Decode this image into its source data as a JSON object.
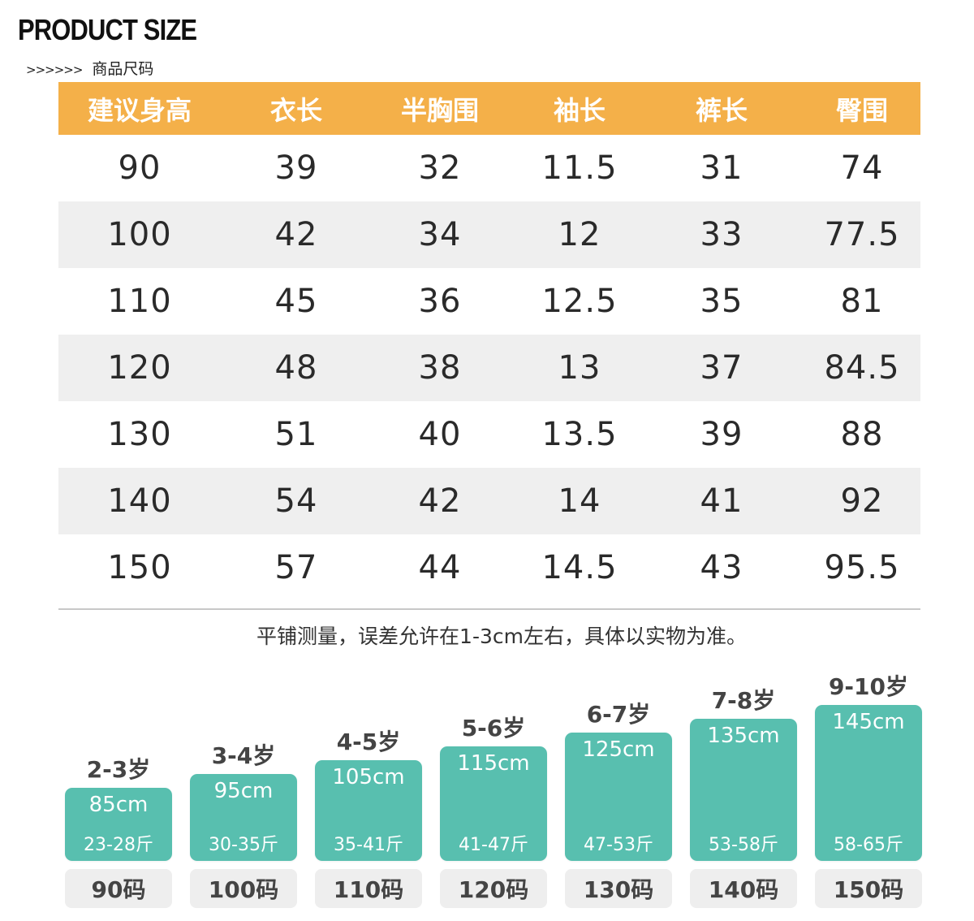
{
  "title": "PRODUCT SIZE",
  "subtitle": {
    "arrows": ">>>>>>",
    "text": "商品尺码"
  },
  "table": {
    "headers": [
      "建议身高",
      "衣长",
      "半胸围",
      "袖长",
      "裤长",
      "臀围"
    ],
    "rows": [
      [
        "90",
        "39",
        "32",
        "11.5",
        "31",
        "74"
      ],
      [
        "100",
        "42",
        "34",
        "12",
        "33",
        "77.5"
      ],
      [
        "110",
        "45",
        "36",
        "12.5",
        "35",
        "81"
      ],
      [
        "120",
        "48",
        "38",
        "13",
        "37",
        "84.5"
      ],
      [
        "130",
        "51",
        "40",
        "13.5",
        "39",
        "88"
      ],
      [
        "140",
        "54",
        "42",
        "14",
        "41",
        "92"
      ],
      [
        "150",
        "57",
        "44",
        "14.5",
        "43",
        "95.5"
      ]
    ]
  },
  "note": "平铺测量，误差允许在1-3cm左右，具体以实物为准。",
  "size_guide": [
    {
      "age": "2-3岁",
      "height": "85cm",
      "weight": "23-28斤",
      "code": "90码"
    },
    {
      "age": "3-4岁",
      "height": "95cm",
      "weight": "30-35斤",
      "code": "100码"
    },
    {
      "age": "4-5岁",
      "height": "105cm",
      "weight": "35-41斤",
      "code": "110码"
    },
    {
      "age": "5-6岁",
      "height": "115cm",
      "weight": "41-47斤",
      "code": "120码"
    },
    {
      "age": "6-7岁",
      "height": "125cm",
      "weight": "47-53斤",
      "code": "130码"
    },
    {
      "age": "7-8岁",
      "height": "135cm",
      "weight": "53-58斤",
      "code": "140码"
    },
    {
      "age": "9-10岁",
      "height": "145cm",
      "weight": "58-65斤",
      "code": "150码"
    }
  ],
  "colors": {
    "header_bg": "#f4b049",
    "bar": "#58bfaf",
    "row_shade": "#efefef"
  }
}
